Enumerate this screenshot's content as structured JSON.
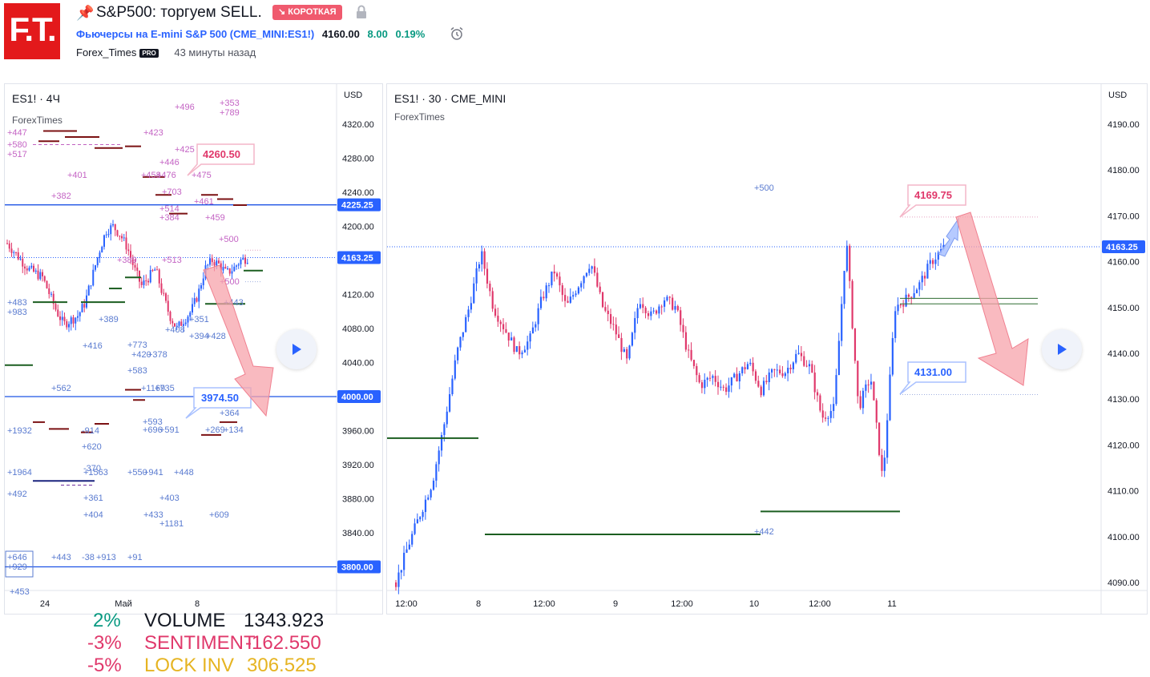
{
  "header": {
    "logo_text": "F.T.",
    "title": "S&P500: торгуем SELL.",
    "badge": "↘ КОРОТКАЯ",
    "symbol_link": "Фьючерсы на E-mini S&P 500 (CME_MINI:ES1!)",
    "price": "4160.00",
    "change": "8.00",
    "change_pct": "0.19%",
    "author": "Forex_Times",
    "pro_badge": "PRO",
    "time_ago": "43 минуты назад"
  },
  "left_chart": {
    "title": "ES1! · 4Ч",
    "subtitle": "ForexTimes",
    "currency": "USD",
    "y_ticks": [
      "4320.00",
      "4280.00",
      "4240.00",
      "4200.00",
      "4160.00",
      "4120.00",
      "4080.00",
      "4040.00",
      "4000.00",
      "3960.00",
      "3920.00",
      "3880.00",
      "3840.00"
    ],
    "price_labels": [
      "4225.25",
      "4163.25",
      "4000.00",
      "3800.00"
    ],
    "x_ticks": [
      "24",
      "Май",
      "8"
    ],
    "callout_top": "4260.50",
    "callout_bottom": "3974.50",
    "annotations": [
      "+447",
      "+580",
      "+517",
      "+401",
      "+382",
      "+423",
      "+496",
      "+353",
      "+789",
      "+425",
      "+446",
      "+458",
      "+476",
      "+475",
      "+703",
      "+461",
      "+514",
      "+384",
      "+459",
      "+500",
      "+389",
      "+513",
      "+483",
      "+983",
      "+389",
      "+416",
      "+773",
      "+420",
      "+378",
      "+583",
      "+1169",
      "+735",
      "+562",
      "+593",
      "+696",
      "+591",
      "+1932",
      "-914",
      "+620",
      "+364",
      "+269",
      "+134",
      "+1964",
      "-370",
      "+1563",
      "+550",
      "+941",
      "+448",
      "+492",
      "+361",
      "+403",
      "+404",
      "+433",
      "+609",
      "+1181",
      "+646",
      "+929",
      "+443",
      "-38",
      "+913",
      "+91",
      "+453",
      "+408",
      "+351",
      "+394",
      "+428",
      "+443",
      "+500"
    ],
    "stats": [
      {
        "pct": "2%",
        "label": "VOLUME",
        "value": "1343.923",
        "pct_color": "#089981",
        "label_color": "#131722"
      },
      {
        "pct": "-3%",
        "label": "SENTIMENT",
        "value": "-162.550",
        "pct_color": "#e0386b",
        "label_color": "#e0386b"
      },
      {
        "pct": "-5%",
        "label": "LOCK INV",
        "value": "306.525",
        "pct_color": "#e0386b",
        "label_color": "#e6b422"
      }
    ]
  },
  "right_chart": {
    "title": "ES1! · 30 · CME_MINI",
    "subtitle": "ForexTimes",
    "currency": "USD",
    "y_ticks": [
      "4190.00",
      "4180.00",
      "4170.00",
      "4160.00",
      "4150.00",
      "4140.00",
      "4130.00",
      "4120.00",
      "4110.00",
      "4100.00",
      "4090.00"
    ],
    "price_label": "4163.25",
    "x_ticks": [
      "12:00",
      "8",
      "12:00",
      "9",
      "12:00",
      "10",
      "12:00",
      "11"
    ],
    "callout_top": "4169.75",
    "callout_bottom": "4131.00",
    "annotations": [
      "+500",
      "+442"
    ]
  },
  "colors": {
    "bull": "#2962ff",
    "bear": "#e0386b",
    "accent": "#2962ff",
    "arrow_red": "#f7a3ab",
    "arrow_blue": "#a9c1ff",
    "green_line": "#1b5e20",
    "dark_red": "#7b1113"
  }
}
